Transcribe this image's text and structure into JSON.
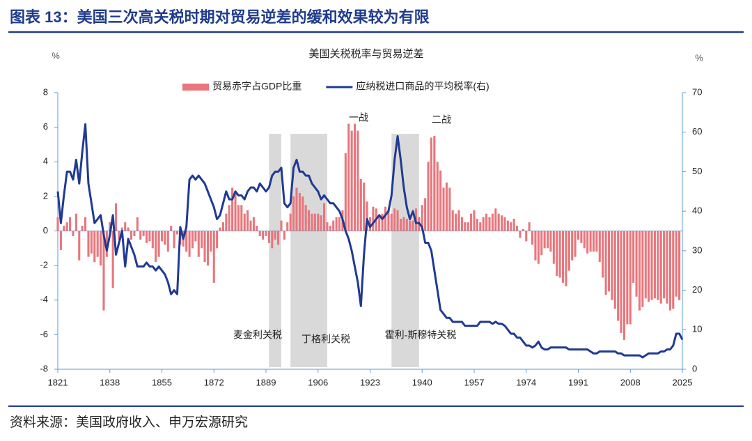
{
  "header": {
    "title": "图表 13：美国三次高关税时期对贸易逆差的缓和效果较为有限"
  },
  "footer": {
    "source": "资料来源：美国政府收入、申万宏源研究"
  },
  "chart_data": {
    "type": "combo",
    "title": "美国关税税率与贸易逆差",
    "ylabel": "%",
    "y2label": "%",
    "legend": "top",
    "x": [
      1821,
      1822,
      1823,
      1824,
      1825,
      1826,
      1827,
      1828,
      1829,
      1830,
      1831,
      1832,
      1833,
      1834,
      1835,
      1836,
      1837,
      1838,
      1839,
      1840,
      1841,
      1842,
      1843,
      1844,
      1845,
      1846,
      1847,
      1848,
      1849,
      1850,
      1851,
      1852,
      1853,
      1854,
      1855,
      1856,
      1857,
      1858,
      1859,
      1860,
      1861,
      1862,
      1863,
      1864,
      1865,
      1866,
      1867,
      1868,
      1869,
      1870,
      1871,
      1872,
      1873,
      1874,
      1875,
      1876,
      1877,
      1878,
      1879,
      1880,
      1881,
      1882,
      1883,
      1884,
      1885,
      1886,
      1887,
      1888,
      1889,
      1890,
      1891,
      1892,
      1893,
      1894,
      1895,
      1896,
      1897,
      1898,
      1899,
      1900,
      1901,
      1902,
      1903,
      1904,
      1905,
      1906,
      1907,
      1908,
      1909,
      1910,
      1911,
      1912,
      1913,
      1914,
      1915,
      1916,
      1917,
      1918,
      1919,
      1920,
      1921,
      1922,
      1923,
      1924,
      1925,
      1926,
      1927,
      1928,
      1929,
      1930,
      1931,
      1932,
      1933,
      1934,
      1935,
      1936,
      1937,
      1938,
      1939,
      1940,
      1941,
      1942,
      1943,
      1944,
      1945,
      1946,
      1947,
      1948,
      1949,
      1950,
      1951,
      1952,
      1953,
      1954,
      1955,
      1956,
      1957,
      1958,
      1959,
      1960,
      1961,
      1962,
      1963,
      1964,
      1965,
      1966,
      1967,
      1968,
      1969,
      1970,
      1971,
      1972,
      1973,
      1974,
      1975,
      1976,
      1977,
      1978,
      1979,
      1980,
      1981,
      1982,
      1983,
      1984,
      1985,
      1986,
      1987,
      1988,
      1989,
      1990,
      1991,
      1992,
      1993,
      1994,
      1995,
      1996,
      1997,
      1998,
      1999,
      2000,
      2001,
      2002,
      2003,
      2004,
      2005,
      2006,
      2007,
      2008,
      2009,
      2010,
      2011,
      2012,
      2013,
      2014,
      2015,
      2016,
      2017,
      2018,
      2019,
      2020,
      2021,
      2022,
      2023,
      2024,
      2025
    ],
    "xlim": [
      1821,
      2025
    ],
    "xticks": [
      1821,
      1838,
      1855,
      1872,
      1889,
      1906,
      1923,
      1940,
      1957,
      1974,
      1991,
      2008,
      2025
    ],
    "ylim": [
      -8,
      8
    ],
    "yticks": [
      -8,
      -6,
      -4,
      -2,
      0,
      2,
      4,
      6,
      8
    ],
    "y2lim": [
      0,
      70
    ],
    "y2ticks": [
      0,
      10,
      20,
      30,
      40,
      50,
      60,
      70
    ],
    "series": [
      {
        "name": "贸易赤字占GDP比重",
        "type": "bar",
        "color": "#e8767c",
        "values": [
          0.8,
          -1.1,
          0.3,
          0.5,
          0.8,
          -0.3,
          1.0,
          -1.7,
          0.3,
          0.8,
          -1.5,
          -1.3,
          -1.8,
          -1.5,
          -2.0,
          -4.6,
          -1.5,
          0.5,
          -3.3,
          1.6,
          -0.5,
          0.2,
          0.5,
          0.2,
          -0.5,
          -0.3,
          0.8,
          -0.5,
          -0.3,
          -0.7,
          -0.6,
          -1.0,
          -1.8,
          -1.5,
          -0.6,
          -0.8,
          -1.2,
          0.3,
          -1.0,
          -0.2,
          -0.8,
          -0.9,
          -1.2,
          -1.5,
          -1.0,
          -0.6,
          -1.5,
          -1.0,
          -1.8,
          -2.0,
          -1.2,
          -3.0,
          -1.0,
          0.2,
          0.5,
          1.0,
          1.5,
          2.5,
          2.2,
          1.5,
          1.5,
          1.0,
          1.2,
          0.6,
          0.8,
          0.3,
          -0.3,
          -0.5,
          -0.3,
          -0.7,
          -1.0,
          -0.5,
          -0.8,
          0.6,
          -0.5,
          0.5,
          1.0,
          2.0,
          2.5,
          2.2,
          2.0,
          1.5,
          1.2,
          1.0,
          1.0,
          1.0,
          0.9,
          1.6,
          0.5,
          0.3,
          0.6,
          0.8,
          0.8,
          1.2,
          4.5,
          6.2,
          5.8,
          6.2,
          5.8,
          3.0,
          2.8,
          1.7,
          0.8,
          1.4,
          1.3,
          0.8,
          1.0,
          1.4,
          1.2,
          1.0,
          1.3,
          1.2,
          0.7,
          0.8,
          0.7,
          0.6,
          0.6,
          1.3,
          0.8,
          1.5,
          1.9,
          4.0,
          5.4,
          5.5,
          4.0,
          3.5,
          2.5,
          2.8,
          2.5,
          1.2,
          1.0,
          1.2,
          0.8,
          0.5,
          0.5,
          1.0,
          1.2,
          0.7,
          0.5,
          0.8,
          1.0,
          0.8,
          1.0,
          1.3,
          1.0,
          0.9,
          0.8,
          0.6,
          0.5,
          0.7,
          0.3,
          -0.4,
          0.1,
          -0.6,
          0.5,
          -0.8,
          -1.7,
          -1.9,
          -1.4,
          -1.0,
          -1.0,
          -1.2,
          -1.9,
          -2.6,
          -2.7,
          -3.0,
          -3.2,
          -2.3,
          -1.7,
          -1.5,
          -0.5,
          -0.7,
          -1.0,
          -1.3,
          -1.2,
          -1.2,
          -1.2,
          -1.8,
          -2.7,
          -3.7,
          -3.5,
          -4.0,
          -4.5,
          -5.2,
          -5.9,
          -6.3,
          -5.4,
          -5.4,
          -3.0,
          -3.8,
          -4.6,
          -4.4,
          -3.9,
          -4.1,
          -4.0,
          -3.9,
          -4.0,
          -4.2,
          -3.9,
          -4.2,
          -4.6,
          -4.5,
          -3.8,
          -4.0,
          null
        ]
      },
      {
        "name": "应纳税进口商品的平均税率(右)",
        "type": "line",
        "axis": "y2",
        "color": "#1f3a93",
        "values": [
          45,
          37,
          44,
          50,
          50,
          48,
          53,
          47,
          55,
          62,
          47,
          42,
          37,
          38,
          39,
          34,
          30,
          34,
          39,
          29,
          32,
          35,
          26,
          33,
          31,
          29,
          26,
          26,
          26,
          27,
          26,
          26,
          25,
          26,
          25,
          24,
          22,
          19,
          20,
          19,
          36,
          33,
          36,
          48,
          49,
          48,
          49,
          48,
          47,
          45,
          43,
          41,
          38,
          39,
          42,
          45,
          43,
          43,
          45,
          44,
          44,
          43,
          45,
          46,
          46,
          45,
          47,
          46,
          45,
          46,
          49,
          50,
          50,
          51,
          42,
          41,
          42,
          51,
          53,
          50,
          50,
          49,
          49,
          47,
          46,
          45,
          43,
          44,
          43,
          42,
          42,
          41,
          40,
          38,
          35,
          33,
          30,
          26,
          22,
          16,
          29,
          38,
          36,
          37,
          38,
          39,
          38,
          39,
          40,
          44,
          53,
          59,
          53,
          46,
          41,
          38,
          40,
          37,
          37,
          36,
          32,
          32,
          30,
          25,
          20,
          15,
          14,
          13,
          13,
          12,
          12,
          12,
          12,
          11,
          11,
          11,
          11,
          11,
          12,
          12,
          12,
          12,
          11.5,
          12,
          11.5,
          11.5,
          11,
          10,
          9,
          9,
          8,
          8,
          7,
          6,
          6,
          5.5,
          6,
          7,
          5.5,
          5,
          5,
          5.5,
          5.5,
          5.5,
          5.5,
          5.5,
          5.5,
          5,
          5,
          5,
          5,
          5,
          5,
          5,
          4.5,
          4,
          4,
          4.5,
          4.5,
          4.5,
          4.5,
          4.5,
          4.5,
          4,
          4,
          3.5,
          3.5,
          3.5,
          3.5,
          3.5,
          3.5,
          3,
          3.5,
          4,
          4,
          4,
          4,
          4.5,
          4.5,
          5,
          5,
          6,
          9,
          9,
          7.5
        ]
      }
    ],
    "periods": [
      {
        "label": "麦金利关税",
        "start": 1890,
        "end": 1894
      },
      {
        "label": "丁格利关税",
        "start": 1897,
        "end": 1909
      },
      {
        "label": "霍利-斯穆特关税",
        "start": 1930,
        "end": 1939
      }
    ],
    "annotations": [
      "一战",
      "二战"
    ]
  }
}
